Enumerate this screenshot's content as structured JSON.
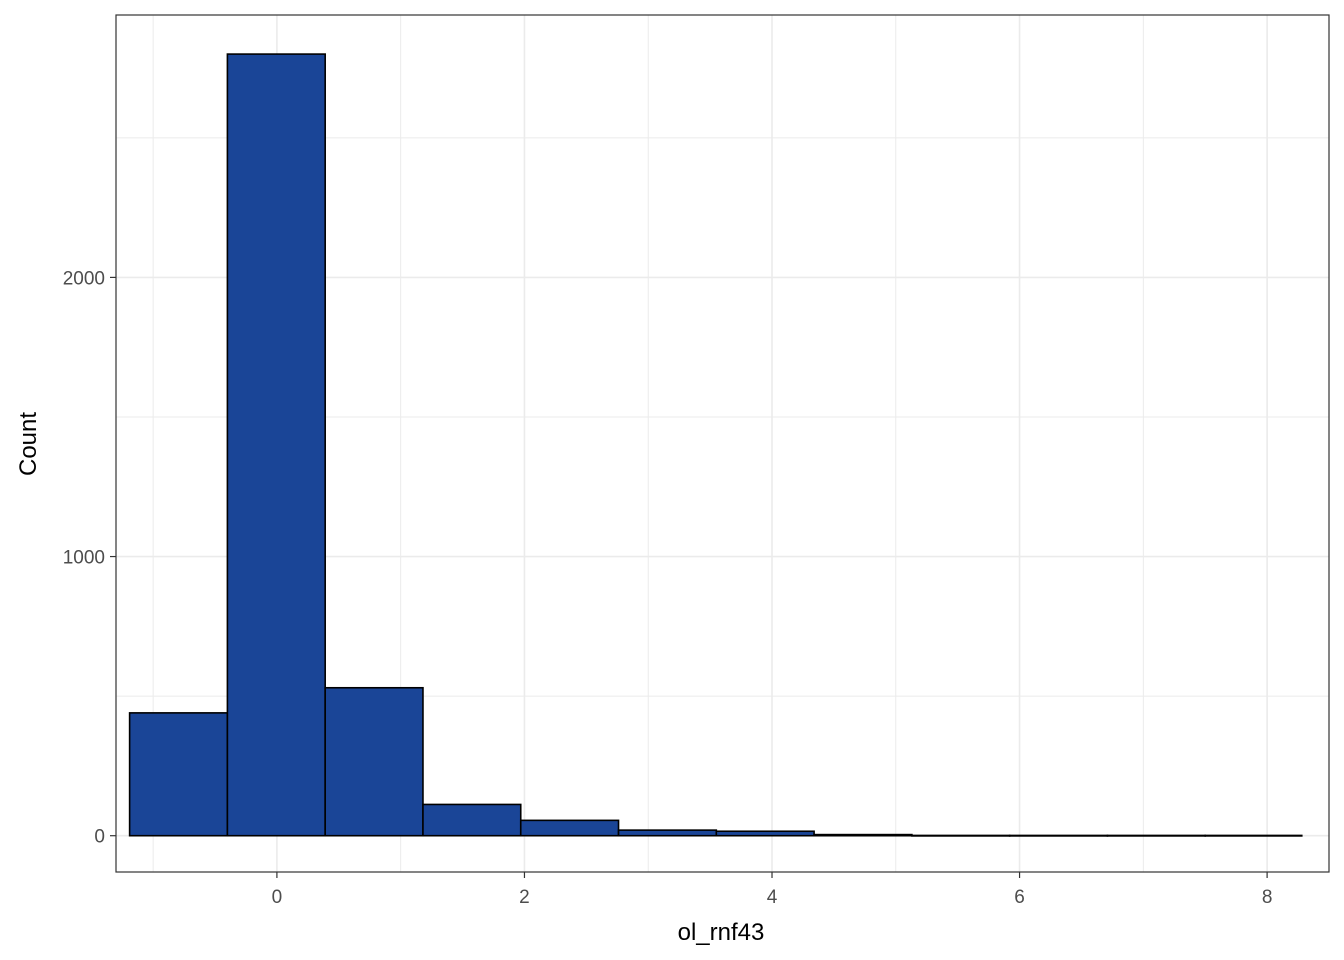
{
  "chart_data": {
    "type": "bar",
    "subtype": "histogram",
    "xlabel": "ol_rnf43",
    "ylabel": "Count",
    "x_ticks": [
      "0",
      "2",
      "4",
      "6",
      "8"
    ],
    "y_ticks": [
      "0",
      "1000",
      "2000"
    ],
    "xlim": [
      -1.3,
      8.5
    ],
    "ylim": [
      -130,
      2940
    ],
    "bins": [
      {
        "x0": -1.19,
        "x1": -0.4,
        "count": 440
      },
      {
        "x0": -0.4,
        "x1": 0.39,
        "count": 2800
      },
      {
        "x0": 0.39,
        "x1": 1.18,
        "count": 530
      },
      {
        "x0": 1.18,
        "x1": 1.97,
        "count": 112
      },
      {
        "x0": 1.97,
        "x1": 2.76,
        "count": 55
      },
      {
        "x0": 2.76,
        "x1": 3.55,
        "count": 20
      },
      {
        "x0": 3.55,
        "x1": 4.34,
        "count": 16
      },
      {
        "x0": 4.34,
        "x1": 5.13,
        "count": 4
      },
      {
        "x0": 5.13,
        "x1": 5.92,
        "count": 1
      },
      {
        "x0": 5.92,
        "x1": 6.71,
        "count": 1
      },
      {
        "x0": 6.71,
        "x1": 7.5,
        "count": 1
      },
      {
        "x0": 7.5,
        "x1": 8.28,
        "count": 1
      }
    ],
    "fill_color": "#1a4597",
    "stroke_color": "#000000",
    "grid": true,
    "grid_color": "#ebebeb",
    "theme": "bw",
    "legend": "none"
  }
}
